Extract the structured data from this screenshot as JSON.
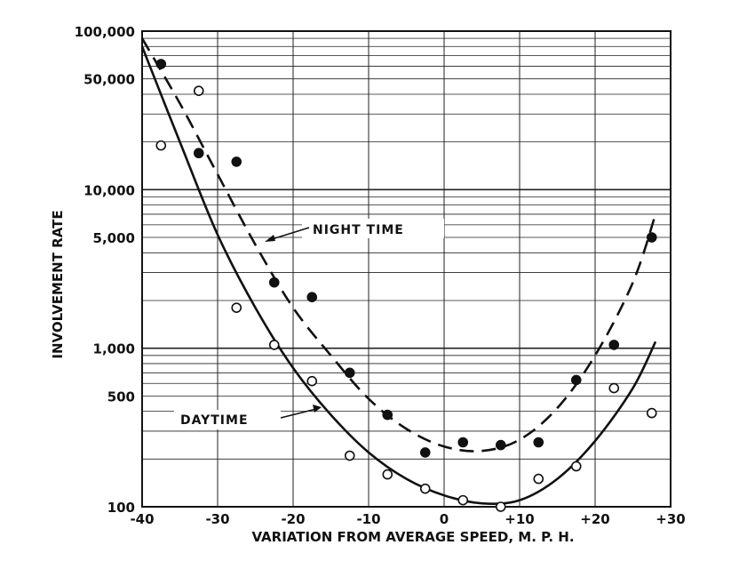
{
  "chart_data": {
    "type": "scatter",
    "title": "",
    "xlabel": "VARIATION FROM AVERAGE SPEED, M. P. H.",
    "ylabel": "INVOLVEMENT RATE",
    "xlim": [
      -40,
      30
    ],
    "ylim": [
      100,
      100000
    ],
    "yscale": "log",
    "grid": true,
    "x_ticks": [
      {
        "value": -40,
        "label": "-40"
      },
      {
        "value": -30,
        "label": "-30"
      },
      {
        "value": -20,
        "label": "-20"
      },
      {
        "value": -10,
        "label": "-10"
      },
      {
        "value": 0,
        "label": "0"
      },
      {
        "value": 10,
        "label": "+10"
      },
      {
        "value": 20,
        "label": "+20"
      },
      {
        "value": 30,
        "label": "+30"
      }
    ],
    "y_ticks": [
      {
        "value": 100,
        "label": "100"
      },
      {
        "value": 500,
        "label": "500"
      },
      {
        "value": 1000,
        "label": "1,000"
      },
      {
        "value": 5000,
        "label": "5,000"
      },
      {
        "value": 10000,
        "label": "10,000"
      },
      {
        "value": 50000,
        "label": "50,000"
      },
      {
        "value": 100000,
        "label": "100,000"
      }
    ],
    "annotations": [
      {
        "text": "NIGHT TIME",
        "series": "night"
      },
      {
        "text": "DAYTIME",
        "series": "day"
      }
    ],
    "series": [
      {
        "id": "night",
        "marker": "filled-circle",
        "curve_style": "dashed",
        "points": [
          {
            "x": -37.5,
            "y": 62000
          },
          {
            "x": -32.5,
            "y": 17000
          },
          {
            "x": -27.5,
            "y": 15000
          },
          {
            "x": -22.5,
            "y": 2600
          },
          {
            "x": -17.5,
            "y": 2100
          },
          {
            "x": -12.5,
            "y": 700
          },
          {
            "x": -7.5,
            "y": 380
          },
          {
            "x": -2.5,
            "y": 220
          },
          {
            "x": 2.5,
            "y": 255
          },
          {
            "x": 7.5,
            "y": 245
          },
          {
            "x": 12.5,
            "y": 255
          },
          {
            "x": 17.5,
            "y": 630
          },
          {
            "x": 22.5,
            "y": 1050
          },
          {
            "x": 27.5,
            "y": 5000
          }
        ],
        "fit_curve": [
          {
            "x": -40,
            "y": 90000
          },
          {
            "x": -35,
            "y": 35000
          },
          {
            "x": -30,
            "y": 12500
          },
          {
            "x": -25,
            "y": 4500
          },
          {
            "x": -20,
            "y": 1800
          },
          {
            "x": -15,
            "y": 900
          },
          {
            "x": -10,
            "y": 480
          },
          {
            "x": -5,
            "y": 310
          },
          {
            "x": 0,
            "y": 240
          },
          {
            "x": 5,
            "y": 225
          },
          {
            "x": 10,
            "y": 265
          },
          {
            "x": 15,
            "y": 420
          },
          {
            "x": 20,
            "y": 900
          },
          {
            "x": 25,
            "y": 2600
          },
          {
            "x": 28,
            "y": 7000
          }
        ]
      },
      {
        "id": "day",
        "marker": "open-circle",
        "curve_style": "solid",
        "points": [
          {
            "x": -37.5,
            "y": 19000
          },
          {
            "x": -32.5,
            "y": 42000
          },
          {
            "x": -27.5,
            "y": 1800
          },
          {
            "x": -22.5,
            "y": 1050
          },
          {
            "x": -17.5,
            "y": 620
          },
          {
            "x": -12.5,
            "y": 210
          },
          {
            "x": -7.5,
            "y": 160
          },
          {
            "x": -2.5,
            "y": 130
          },
          {
            "x": 2.5,
            "y": 110
          },
          {
            "x": 7.5,
            "y": 100
          },
          {
            "x": 12.5,
            "y": 150
          },
          {
            "x": 17.5,
            "y": 180
          },
          {
            "x": 22.5,
            "y": 560
          },
          {
            "x": 27.5,
            "y": 390
          }
        ],
        "fit_curve": [
          {
            "x": -40,
            "y": 80000
          },
          {
            "x": -35,
            "y": 20000
          },
          {
            "x": -30,
            "y": 5200
          },
          {
            "x": -25,
            "y": 1800
          },
          {
            "x": -20,
            "y": 750
          },
          {
            "x": -15,
            "y": 380
          },
          {
            "x": -10,
            "y": 220
          },
          {
            "x": -5,
            "y": 150
          },
          {
            "x": 0,
            "y": 118
          },
          {
            "x": 5,
            "y": 105
          },
          {
            "x": 10,
            "y": 110
          },
          {
            "x": 15,
            "y": 150
          },
          {
            "x": 20,
            "y": 260
          },
          {
            "x": 25,
            "y": 560
          },
          {
            "x": 28,
            "y": 1100
          }
        ]
      }
    ]
  }
}
